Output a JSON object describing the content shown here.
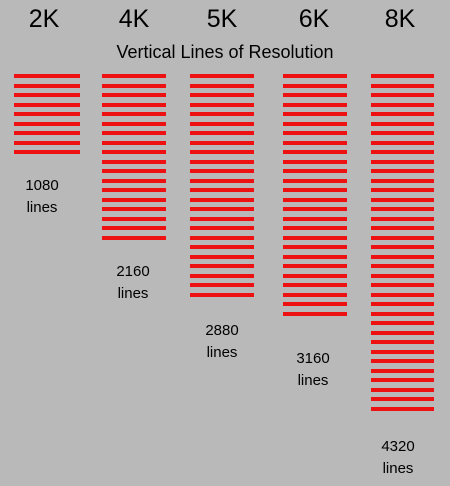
{
  "title": "Vertical Lines of Resolution",
  "line_color": "#ee1111",
  "background_color": "#b9b9b9",
  "resolutions": [
    {
      "label": "2K",
      "lines": "1080",
      "unit": "lines",
      "stripe_count": 9
    },
    {
      "label": "4K",
      "lines": "2160",
      "unit": "lines",
      "stripe_count": 18
    },
    {
      "label": "5K",
      "lines": "2880",
      "unit": "lines",
      "stripe_count": 24
    },
    {
      "label": "6K",
      "lines": "3160",
      "unit": "lines",
      "stripe_count": 26
    },
    {
      "label": "8K",
      "lines": "4320",
      "unit": "lines",
      "stripe_count": 36
    }
  ]
}
